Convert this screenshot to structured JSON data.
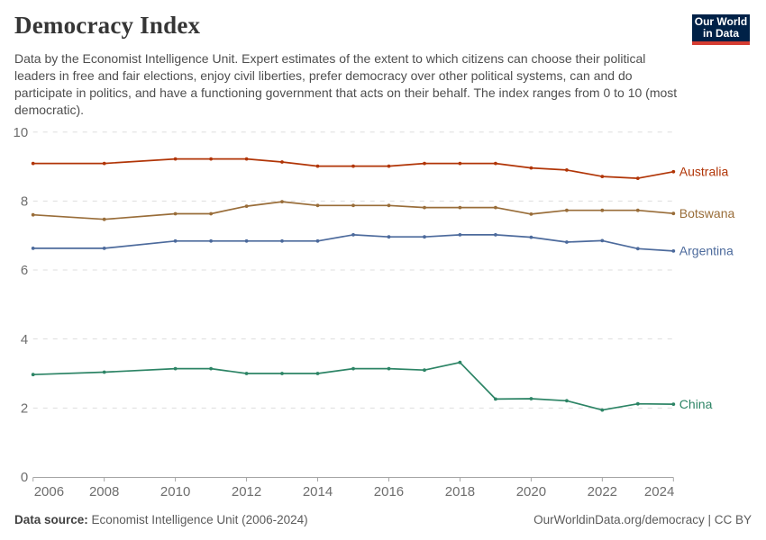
{
  "header": {
    "title": "Democracy Index",
    "subtitle": "Data by the Economist Intelligence Unit. Expert estimates of the extent to which citizens can choose their political leaders in free and fair elections, enjoy civil liberties, prefer democracy over other political systems, can and do participate in politics, and have a functioning government that acts on their behalf. The index ranges from 0 to 10 (most democratic).",
    "logo": {
      "line1": "Our World",
      "line2": "in Data",
      "bg_color": "#002147",
      "bar_color": "#d53c32"
    }
  },
  "chart_data": {
    "type": "line",
    "title": "Democracy Index",
    "x": [
      2006,
      2008,
      2010,
      2011,
      2012,
      2013,
      2014,
      2015,
      2016,
      2017,
      2018,
      2019,
      2020,
      2021,
      2022,
      2023,
      2024
    ],
    "series": [
      {
        "name": "Australia",
        "color": "#B13507",
        "values": [
          9.09,
          9.09,
          9.22,
          9.22,
          9.22,
          9.13,
          9.01,
          9.01,
          9.01,
          9.09,
          9.09,
          9.09,
          8.96,
          8.9,
          8.71,
          8.66,
          8.85
        ]
      },
      {
        "name": "Botswana",
        "color": "#996D39",
        "values": [
          7.6,
          7.47,
          7.63,
          7.63,
          7.85,
          7.98,
          7.87,
          7.87,
          7.87,
          7.81,
          7.81,
          7.81,
          7.62,
          7.73,
          7.73,
          7.73,
          7.64
        ]
      },
      {
        "name": "Argentina",
        "color": "#4C6A9C",
        "values": [
          6.63,
          6.63,
          6.84,
          6.84,
          6.84,
          6.84,
          6.84,
          7.02,
          6.96,
          6.96,
          7.02,
          7.02,
          6.95,
          6.81,
          6.85,
          6.62,
          6.55
        ]
      },
      {
        "name": "China",
        "color": "#2C8465",
        "values": [
          2.97,
          3.04,
          3.14,
          3.14,
          3.0,
          3.0,
          3.0,
          3.14,
          3.14,
          3.1,
          3.32,
          2.26,
          2.27,
          2.21,
          1.94,
          2.12,
          2.11
        ]
      }
    ],
    "xlabel": "",
    "ylabel": "",
    "xlim": [
      2006,
      2024
    ],
    "ylim": [
      0,
      10
    ],
    "xticks": [
      2006,
      2008,
      2010,
      2012,
      2014,
      2016,
      2018,
      2020,
      2022,
      2024
    ],
    "yticks": [
      0,
      2,
      4,
      6,
      8,
      10
    ],
    "grid": "horizontal-dashed",
    "legend_position": "end-of-line-labels",
    "grid_color": "#dddddd",
    "axis_color": "#a5a5a5",
    "tick_label_color": "#6e6e6e"
  },
  "footer": {
    "datasource_label": "Data source:",
    "datasource_value": " Economist Intelligence Unit (2006-2024)",
    "credit": "OurWorldinData.org/democracy | CC BY"
  }
}
